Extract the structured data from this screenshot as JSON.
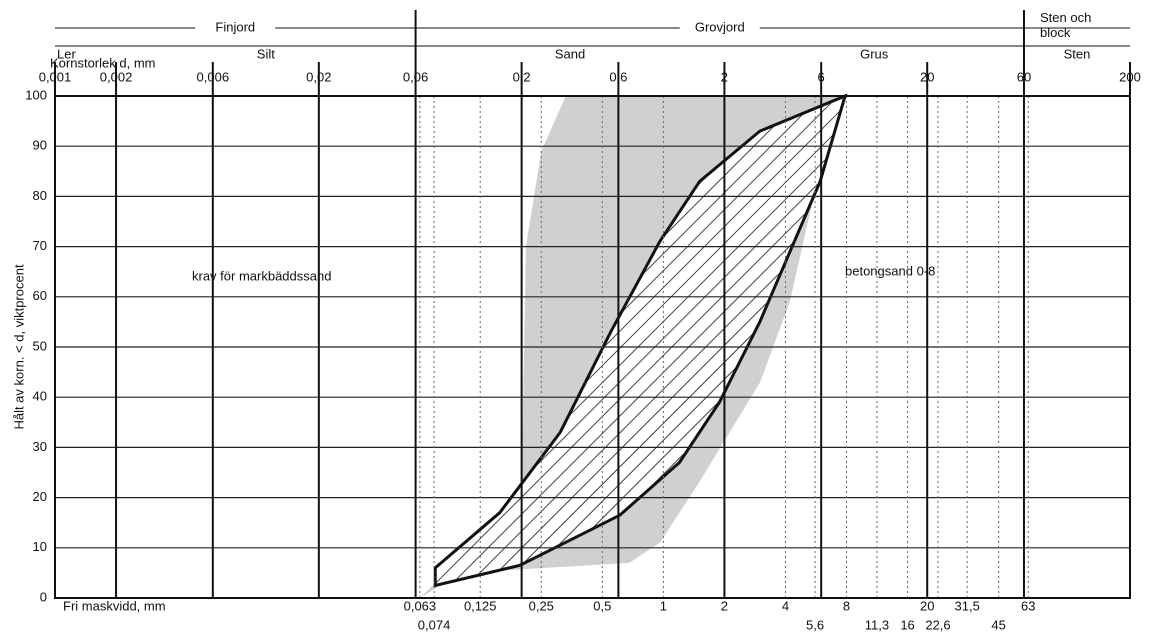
{
  "chart_data": {
    "type": "grading-curve",
    "y_label": "Hålt av korn. < d, viktprocent",
    "x_label_top": "Kornstorlek d, mm",
    "x_label_bottom": "Fri maskvidd, mm",
    "log_x": true,
    "xlim": [
      0.001,
      200
    ],
    "ylim": [
      0,
      100
    ],
    "yticks": [
      0,
      10,
      20,
      30,
      40,
      50,
      60,
      70,
      80,
      90,
      100
    ],
    "xticks": [
      {
        "value": 0.001,
        "label": "0,001"
      },
      {
        "value": 0.002,
        "label": "0,002"
      },
      {
        "value": 0.006,
        "label": "0,006"
      },
      {
        "value": 0.02,
        "label": "0,02"
      },
      {
        "value": 0.06,
        "label": "0,06"
      },
      {
        "value": 0.2,
        "label": "0,2"
      },
      {
        "value": 0.6,
        "label": "0,6"
      },
      2,
      6,
      20,
      60,
      200
    ],
    "sieves": [
      {
        "value": 0.063,
        "label": "0,063"
      },
      {
        "value": 0.074,
        "label": "0,074"
      },
      {
        "value": 0.125,
        "label": "0,125"
      },
      {
        "value": 0.25,
        "label": "0,25"
      },
      {
        "value": 0.5,
        "label": "0,5"
      },
      1,
      2,
      4,
      {
        "value": 5.6,
        "label": "5,6"
      },
      8,
      {
        "value": 11.3,
        "label": "11,3"
      },
      16,
      20,
      {
        "value": 22.6,
        "label": "22,6"
      },
      {
        "value": 31.5,
        "label": "31,5"
      },
      45,
      63
    ],
    "main_zones": [
      {
        "label": "Finjord",
        "from": 0.001,
        "to": 0.06
      },
      {
        "label": "Grovjord",
        "from": 0.06,
        "to": 60
      }
    ],
    "main_zone_extra": "Sten och block",
    "sub_zones": [
      {
        "label": "Ler",
        "from": 0.001,
        "to": 0.002
      },
      {
        "label": "Silt",
        "from": 0.002,
        "to": 0.06
      },
      {
        "label": "Sand",
        "from": 0.06,
        "to": 2
      },
      {
        "label": "Grus",
        "from": 2,
        "to": 60
      },
      {
        "label": "Sten",
        "from": 60,
        "to": 200
      }
    ],
    "regions": [
      {
        "label": "krav för markbäddssand",
        "color": "#d0d0d0",
        "upper": {
          "x": [
            0.063,
            0.125,
            0.2,
            0.21,
            0.25,
            0.33
          ],
          "values": [
            0,
            12,
            23,
            70,
            89,
            100
          ]
        },
        "lower": {
          "x": [
            0.063,
            0.1,
            0.68,
            0.96,
            1.5,
            3,
            4.2,
            5.3,
            6.6,
            7.9
          ],
          "values": [
            0,
            5,
            7,
            11,
            23,
            43,
            59,
            77,
            95,
            100
          ]
        }
      },
      {
        "label": "betongsand 0-8",
        "color": "#111111",
        "hatched": true,
        "upper": {
          "x": [
            0.075,
            0.156,
            0.31,
            0.55,
            0.96,
            1.51,
            2.99,
            7.87
          ],
          "values": [
            6,
            17,
            33,
            53,
            71,
            83,
            93,
            100
          ]
        },
        "lower": {
          "x": [
            0.075,
            0.196,
            0.61,
            1.2,
            1.89,
            2.99,
            4.21,
            5.93,
            7.87
          ],
          "values": [
            2.5,
            6.5,
            16.5,
            27,
            39,
            55,
            69,
            83,
            100
          ]
        }
      }
    ]
  }
}
